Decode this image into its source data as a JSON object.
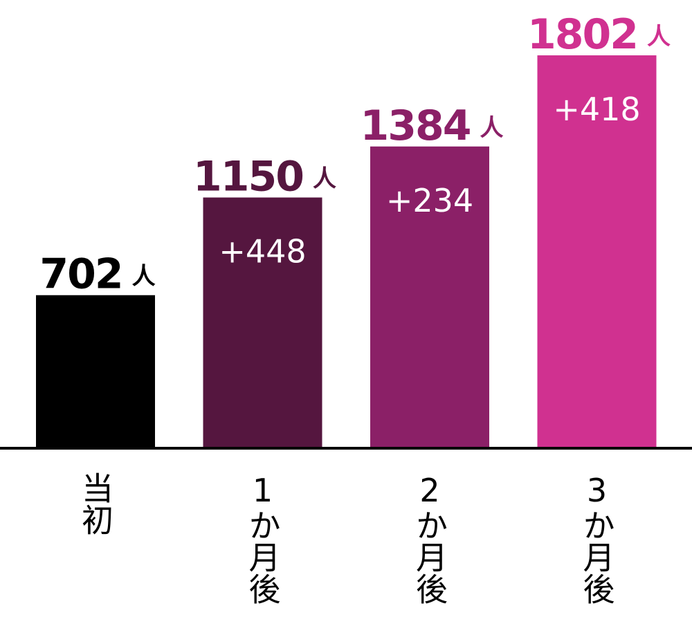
{
  "chart_data": {
    "type": "bar",
    "categories": [
      "当初",
      "1か月後",
      "2か月後",
      "3か月後"
    ],
    "values": [
      702,
      1150,
      1384,
      1802
    ],
    "value_unit": "人",
    "diff_labels": [
      null,
      "+448",
      "+234",
      "+418"
    ],
    "colors": [
      "#000000",
      "#55163f",
      "#8b2067",
      "#d03190"
    ]
  }
}
